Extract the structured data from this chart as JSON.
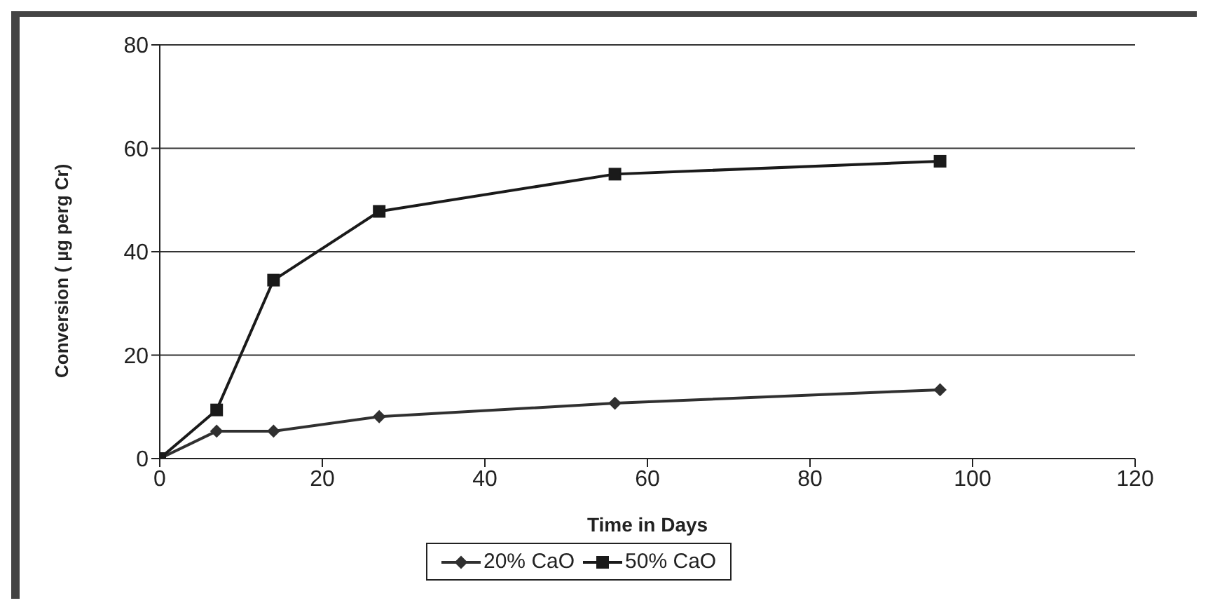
{
  "chart_data": {
    "type": "line",
    "xlabel": "Time in Days",
    "ylabel": "Conversion ( µg perg Cr)",
    "xlim": [
      0,
      120
    ],
    "xticks": [
      0,
      20,
      40,
      60,
      80,
      100,
      120
    ],
    "ylim": [
      0,
      80
    ],
    "yticks": [
      0,
      20,
      40,
      60,
      80
    ],
    "grid": "y",
    "legend": "bottom",
    "series": [
      {
        "name": "20% CaO",
        "color": "#303030",
        "marker": "diamond",
        "x": [
          0,
          7,
          14,
          27,
          56,
          96
        ],
        "values": [
          0,
          5.3,
          5.3,
          8.1,
          10.7,
          13.3
        ]
      },
      {
        "name": "50% CaO",
        "color": "#1a1a1a",
        "marker": "square",
        "x": [
          0,
          7,
          14,
          27,
          56,
          96
        ],
        "values": [
          0,
          9.4,
          34.5,
          47.8,
          55,
          57.5
        ]
      }
    ]
  }
}
